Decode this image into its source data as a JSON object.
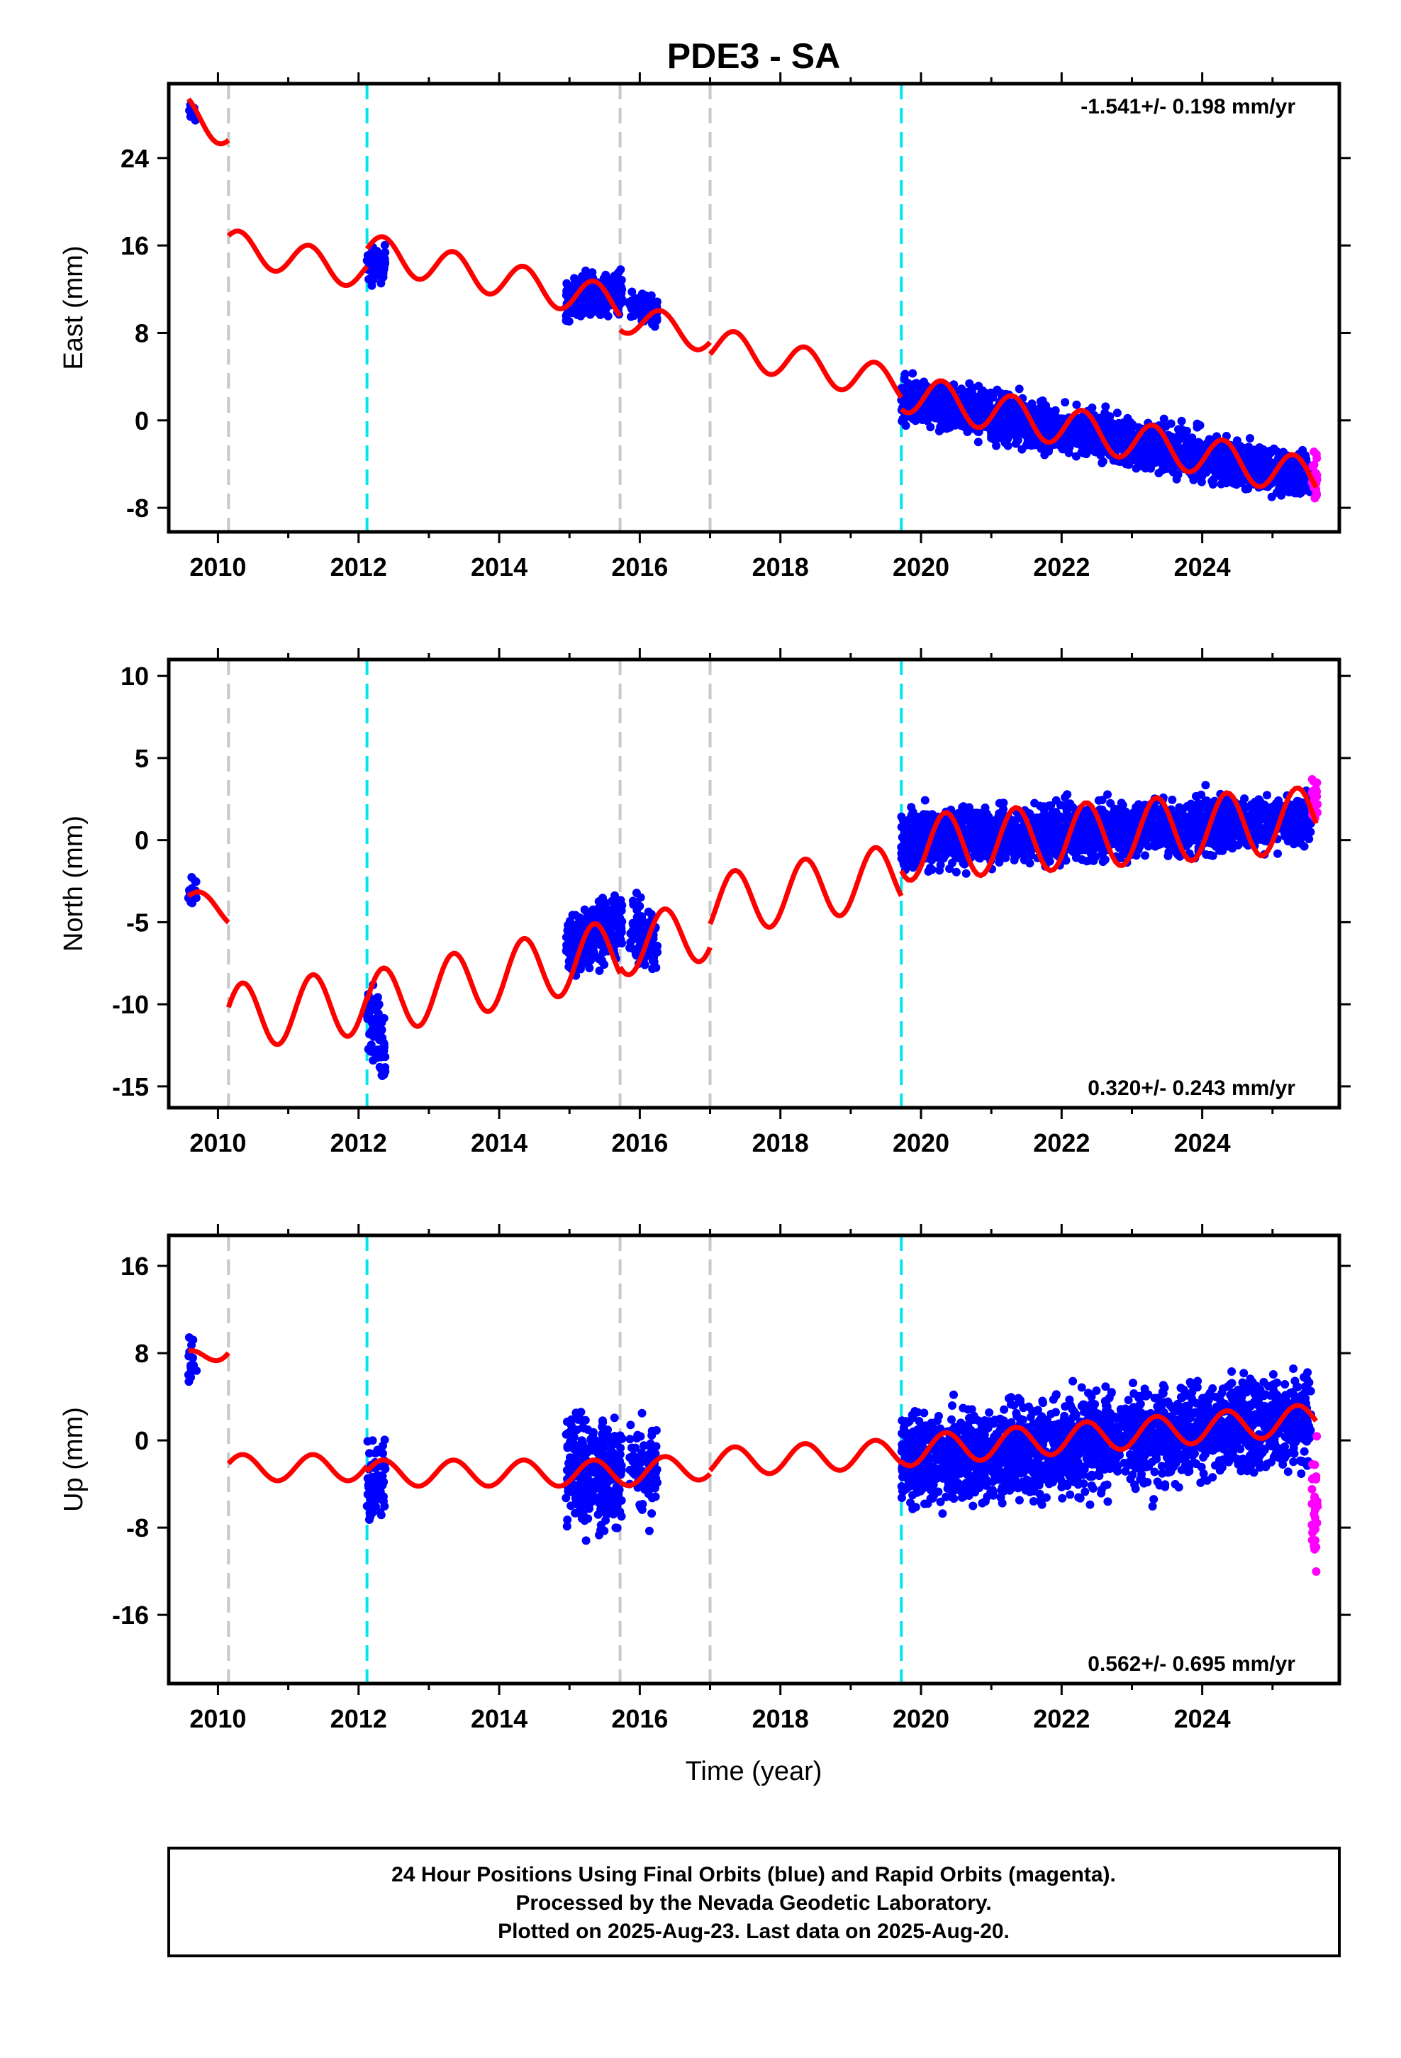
{
  "title": "PDE3 - SA",
  "x_axis_label": "Time (year)",
  "footer": {
    "line1": "24 Hour Positions Using Final Orbits (blue) and Rapid Orbits (magenta).",
    "line2": "Processed by the Nevada Geodetic Laboratory.",
    "line3": "Plotted on 2025-Aug-23. Last data on 2025-Aug-20."
  },
  "colors": {
    "final_orbits": "#0000ff",
    "rapid_orbits": "#ff00ff",
    "model_fit": "#ff0000",
    "equipment_change": "#c8c8c8",
    "earthquake": "#00e5ee",
    "frame": "#000000"
  },
  "chart_data": [
    {
      "type": "scatter",
      "panel": "east",
      "ylabel": "East (mm)",
      "rate_text": "-1.541+/- 0.198 mm/yr",
      "rate_position": "top-right",
      "xlim": [
        2009.3,
        2025.95
      ],
      "ylim": [
        -10.2,
        30.8
      ],
      "x_ticks": [
        2010,
        2012,
        2014,
        2016,
        2018,
        2020,
        2022,
        2024
      ],
      "y_ticks": [
        24,
        16,
        8,
        0,
        -8
      ],
      "vlines_gray": [
        2010.15,
        2015.72,
        2017.0
      ],
      "vlines_cyan": [
        2012.12,
        2019.72
      ],
      "series": [
        {
          "kind": "final_orbits",
          "segments": [
            {
              "x": [
                2009.58,
                2009.7
              ],
              "center": [
                28.5,
                28.0
              ],
              "spread": 1.5,
              "n": 14
            },
            {
              "x": [
                2012.12,
                2012.38
              ],
              "center": [
                14.0,
                14.3
              ],
              "spread": 3.0,
              "n": 70
            },
            {
              "x": [
                2014.95,
                2015.75
              ],
              "center": [
                11.0,
                12.0
              ],
              "spread": 3.5,
              "n": 320
            },
            {
              "x": [
                2015.85,
                2016.25
              ],
              "center": [
                10.5,
                9.8
              ],
              "spread": 2.5,
              "n": 90
            },
            {
              "x": [
                2019.72,
                2025.55
              ],
              "center": [
                2.0,
                -5.2
              ],
              "spread": 4.0,
              "n": 2100
            }
          ]
        },
        {
          "kind": "rapid_orbits",
          "segments": [
            {
              "x": [
                2025.56,
                2025.64
              ],
              "center": [
                -5.5,
                -5.5
              ],
              "spread": 3.5,
              "n": 30
            }
          ]
        }
      ],
      "model": {
        "pieces": [
          {
            "x": [
              2009.58,
              2010.15
            ],
            "y0": 28.0,
            "slope": -2.5,
            "amp": 1.6,
            "phase": 0.25
          },
          {
            "x": [
              2010.15,
              2012.12
            ],
            "y0": 16.0,
            "slope": -1.3,
            "amp": 1.5,
            "phase": 0.05
          },
          {
            "x": [
              2012.12,
              2015.72
            ],
            "y0": 15.5,
            "slope": -1.35,
            "amp": 1.6,
            "phase": 0.1
          },
          {
            "x": [
              2015.72,
              2017.0
            ],
            "y0": 9.5,
            "slope": -1.5,
            "amp": 1.4,
            "phase": 0.05
          },
          {
            "x": [
              2017.0,
              2019.72
            ],
            "y0": 7.0,
            "slope": -1.4,
            "amp": 1.6,
            "phase": 0.1
          },
          {
            "x": [
              2019.72,
              2025.62
            ],
            "y0": 2.6,
            "slope": -1.35,
            "amp": 1.8,
            "phase": 0.05
          }
        ]
      }
    },
    {
      "type": "scatter",
      "panel": "north",
      "ylabel": "North (mm)",
      "rate_text": "0.320+/- 0.243 mm/yr",
      "rate_position": "bottom-right",
      "xlim": [
        2009.3,
        2025.95
      ],
      "ylim": [
        -16.3,
        11.0
      ],
      "x_ticks": [
        2010,
        2012,
        2014,
        2016,
        2018,
        2020,
        2022,
        2024
      ],
      "y_ticks": [
        10,
        5,
        0,
        -5,
        -10,
        -15
      ],
      "vlines_gray": [
        2010.15,
        2015.72,
        2017.0
      ],
      "vlines_cyan": [
        2012.12,
        2019.72
      ],
      "series": [
        {
          "kind": "final_orbits",
          "segments": [
            {
              "x": [
                2009.58,
                2009.7
              ],
              "center": [
                -3.5,
                -3.0
              ],
              "spread": 2.5,
              "n": 14
            },
            {
              "x": [
                2012.12,
                2012.38
              ],
              "center": [
                -10.5,
                -13.0
              ],
              "spread": 4.5,
              "n": 70
            },
            {
              "x": [
                2014.95,
                2015.75
              ],
              "center": [
                -6.5,
                -5.0
              ],
              "spread": 3.5,
              "n": 320
            },
            {
              "x": [
                2015.85,
                2016.25
              ],
              "center": [
                -5.0,
                -6.5
              ],
              "spread": 3.5,
              "n": 90
            },
            {
              "x": [
                2019.72,
                2025.55
              ],
              "center": [
                0.0,
                1.2
              ],
              "spread": 3.2,
              "n": 2100
            }
          ]
        },
        {
          "kind": "rapid_orbits",
          "segments": [
            {
              "x": [
                2025.56,
                2025.64
              ],
              "center": [
                2.5,
                2.5
              ],
              "spread": 2.5,
              "n": 30
            }
          ]
        }
      ],
      "model": {
        "pieces": [
          {
            "x": [
              2009.58,
              2010.15
            ],
            "y0": -3.8,
            "slope": -1.0,
            "amp": 0.8,
            "phase": 0.5
          },
          {
            "x": [
              2010.15,
              2012.12
            ],
            "y0": -10.8,
            "slope": 0.5,
            "amp": 2.0,
            "phase": 0.1
          },
          {
            "x": [
              2012.12,
              2015.72
            ],
            "y0": -10.0,
            "slope": 0.9,
            "amp": 2.0,
            "phase": 0.1
          },
          {
            "x": [
              2015.72,
              2017.0
            ],
            "y0": -6.5,
            "slope": 0.8,
            "amp": 1.8,
            "phase": 0.1
          },
          {
            "x": [
              2017.0,
              2019.72
            ],
            "y0": -4.0,
            "slope": 0.7,
            "amp": 1.9,
            "phase": 0.1
          },
          {
            "x": [
              2019.72,
              2025.62
            ],
            "y0": -0.5,
            "slope": 0.3,
            "amp": 2.0,
            "phase": 0.1
          }
        ]
      }
    },
    {
      "type": "scatter",
      "panel": "up",
      "ylabel": "Up (mm)",
      "rate_text": "0.562+/- 0.695 mm/yr",
      "rate_position": "bottom-right",
      "xlim": [
        2009.3,
        2025.95
      ],
      "ylim": [
        -22.3,
        18.8
      ],
      "x_ticks": [
        2010,
        2012,
        2014,
        2016,
        2018,
        2020,
        2022,
        2024
      ],
      "y_ticks": [
        16,
        8,
        0,
        -8,
        -16
      ],
      "vlines_gray": [
        2010.15,
        2015.72,
        2017.0
      ],
      "vlines_cyan": [
        2012.12,
        2019.72
      ],
      "series": [
        {
          "kind": "final_orbits",
          "segments": [
            {
              "x": [
                2009.58,
                2009.7
              ],
              "center": [
                7.0,
                7.0
              ],
              "spread": 6.0,
              "n": 14
            },
            {
              "x": [
                2012.12,
                2012.38
              ],
              "center": [
                -4.0,
                -3.0
              ],
              "spread": 8.0,
              "n": 70
            },
            {
              "x": [
                2014.95,
                2015.75
              ],
              "center": [
                -2.5,
                -3.0
              ],
              "spread": 9.0,
              "n": 320
            },
            {
              "x": [
                2015.85,
                2016.25
              ],
              "center": [
                -3.0,
                -3.0
              ],
              "spread": 8.0,
              "n": 90
            },
            {
              "x": [
                2019.72,
                2025.55
              ],
              "center": [
                -2.0,
                2.0
              ],
              "spread": 8.5,
              "n": 2100
            }
          ]
        },
        {
          "kind": "rapid_orbits",
          "segments": [
            {
              "x": [
                2025.56,
                2025.64
              ],
              "center": [
                -6.0,
                -6.0
              ],
              "spread": 10.0,
              "n": 30
            }
          ]
        }
      ],
      "model": {
        "pieces": [
          {
            "x": [
              2009.58,
              2010.15
            ],
            "y0": 7.0,
            "slope": 3.5,
            "amp": 1.2,
            "phase": 0.3
          },
          {
            "x": [
              2010.15,
              2012.12
            ],
            "y0": -2.5,
            "slope": 0.0,
            "amp": 1.2,
            "phase": 0.1
          },
          {
            "x": [
              2012.12,
              2015.72
            ],
            "y0": -3.0,
            "slope": 0.0,
            "amp": 1.2,
            "phase": 0.1
          },
          {
            "x": [
              2015.72,
              2017.0
            ],
            "y0": -3.0,
            "slope": 0.5,
            "amp": 1.2,
            "phase": 0.1
          },
          {
            "x": [
              2017.0,
              2019.72
            ],
            "y0": -2.0,
            "slope": 0.3,
            "amp": 1.3,
            "phase": 0.1
          },
          {
            "x": [
              2019.72,
              2025.62
            ],
            "y0": -1.0,
            "slope": 0.5,
            "amp": 1.4,
            "phase": 0.1
          }
        ]
      }
    }
  ]
}
